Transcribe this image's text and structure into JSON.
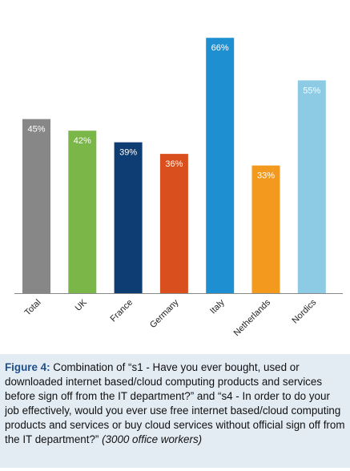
{
  "chart_data": {
    "type": "bar",
    "categories": [
      "Total",
      "UK",
      "France",
      "Germany",
      "Italy",
      "Netherlands",
      "Nordics"
    ],
    "values": [
      45,
      42,
      39,
      36,
      66,
      33,
      55
    ],
    "value_labels": [
      "45%",
      "42%",
      "39%",
      "36%",
      "66%",
      "33%",
      "55%"
    ],
    "colors": [
      "#878787",
      "#7ab648",
      "#0e3d74",
      "#d94f1e",
      "#1e90d2",
      "#f39a1e",
      "#8ccbe3"
    ],
    "label_colors": [
      "#ffffff",
      "#ffffff",
      "#ffffff",
      "#ffffff",
      "#ffffff",
      "#ffffff",
      "#ffffff"
    ],
    "ylim": [
      0,
      70
    ],
    "grid": false,
    "legend": "none"
  },
  "caption": {
    "figure_label": "Figure 4:",
    "text": " Combination of “s1 - Have you ever bought, used or downloaded internet based/cloud computing products and services before sign off from the IT department?” and “s4 - In order to do your job effectively, would you ever use free internet based/cloud computing products and services or buy cloud services without official sign off from the IT department?”",
    "note": "(3000 office workers)"
  }
}
